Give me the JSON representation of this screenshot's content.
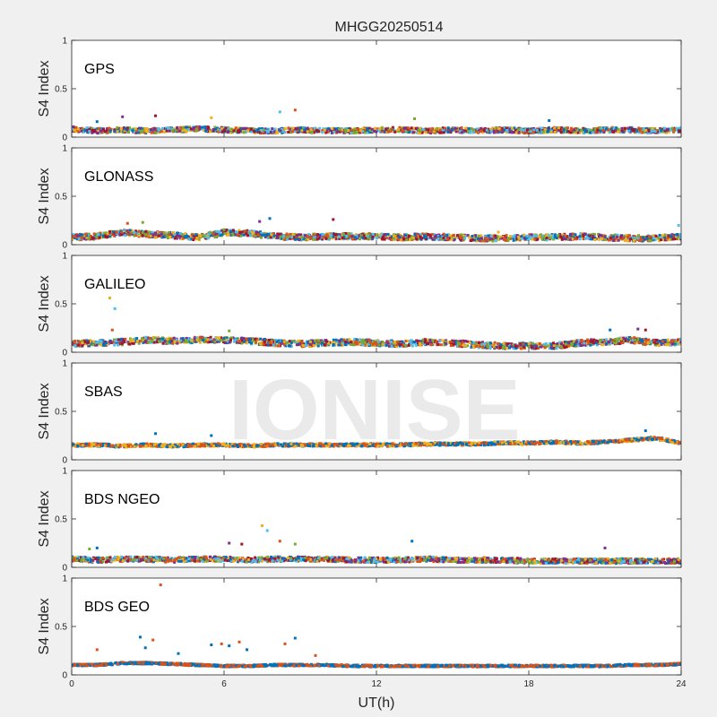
{
  "figure": {
    "title": "MHGG20250514",
    "xlabel": "UT(h)",
    "watermark": "IONISE",
    "background": "#f0f0f0",
    "axes_background": "#ffffff",
    "watermark_color": "#e6e6e6"
  },
  "chart_data": {
    "type": "scatter",
    "title": "MHGG20250514",
    "xlabel": "UT(h)",
    "ylabel": "S4 Index",
    "xlim": [
      0,
      24
    ],
    "ylim": [
      0,
      1
    ],
    "x_ticks": [
      "0",
      "6",
      "12",
      "18",
      "24"
    ],
    "y_ticks": [
      "0",
      "0.5",
      "1"
    ],
    "grid": false,
    "series_colors": [
      "#0072BD",
      "#D95319",
      "#EDB120",
      "#7E2F8E",
      "#77AC30",
      "#4DBEEE",
      "#A2142F"
    ],
    "panels": [
      {
        "label": "GPS",
        "baseline": [
          0.08,
          0.06,
          0.07,
          0.06,
          0.07,
          0.08,
          0.07,
          0.06,
          0.06,
          0.07,
          0.06,
          0.06,
          0.07,
          0.07,
          0.06,
          0.07,
          0.06,
          0.07,
          0.06,
          0.07,
          0.06,
          0.07,
          0.07,
          0.06,
          0.07
        ],
        "spread": 0.05,
        "outliers": [
          [
            1.0,
            0.16
          ],
          [
            2.0,
            0.21
          ],
          [
            3.3,
            0.22
          ],
          [
            5.5,
            0.2
          ],
          [
            8.2,
            0.26
          ],
          [
            8.8,
            0.28
          ],
          [
            13.5,
            0.19
          ],
          [
            18.8,
            0.17
          ]
        ]
      },
      {
        "label": "GLONASS",
        "baseline": [
          0.07,
          0.08,
          0.12,
          0.1,
          0.09,
          0.07,
          0.12,
          0.11,
          0.08,
          0.07,
          0.08,
          0.08,
          0.08,
          0.07,
          0.08,
          0.07,
          0.06,
          0.06,
          0.07,
          0.07,
          0.08,
          0.07,
          0.06,
          0.06,
          0.08
        ],
        "spread": 0.06,
        "outliers": [
          [
            2.2,
            0.22
          ],
          [
            2.8,
            0.23
          ],
          [
            7.8,
            0.27
          ],
          [
            7.4,
            0.24
          ],
          [
            10.3,
            0.26
          ],
          [
            16.8,
            0.13
          ],
          [
            23.9,
            0.2
          ]
        ]
      },
      {
        "label": "GALILEO",
        "baseline": [
          0.08,
          0.09,
          0.1,
          0.12,
          0.11,
          0.12,
          0.12,
          0.11,
          0.09,
          0.08,
          0.09,
          0.1,
          0.09,
          0.08,
          0.1,
          0.09,
          0.07,
          0.06,
          0.06,
          0.06,
          0.09,
          0.1,
          0.12,
          0.09,
          0.1
        ],
        "spread": 0.06,
        "outliers": [
          [
            1.5,
            0.56
          ],
          [
            1.7,
            0.45
          ],
          [
            1.6,
            0.23
          ],
          [
            6.2,
            0.22
          ],
          [
            21.2,
            0.23
          ],
          [
            22.3,
            0.24
          ],
          [
            22.6,
            0.23
          ]
        ]
      },
      {
        "label": "SBAS",
        "baseline": [
          0.15,
          0.15,
          0.14,
          0.15,
          0.14,
          0.15,
          0.15,
          0.14,
          0.15,
          0.15,
          0.15,
          0.15,
          0.15,
          0.15,
          0.16,
          0.16,
          0.16,
          0.17,
          0.17,
          0.18,
          0.17,
          0.18,
          0.2,
          0.22,
          0.17
        ],
        "spread": 0.03,
        "outliers": [
          [
            3.3,
            0.27
          ],
          [
            5.5,
            0.25
          ],
          [
            22.6,
            0.3
          ]
        ]
      },
      {
        "label": "BDS NGEO",
        "baseline": [
          0.08,
          0.07,
          0.08,
          0.08,
          0.07,
          0.08,
          0.08,
          0.07,
          0.08,
          0.08,
          0.08,
          0.07,
          0.07,
          0.07,
          0.08,
          0.07,
          0.07,
          0.07,
          0.06,
          0.06,
          0.06,
          0.06,
          0.06,
          0.06,
          0.06
        ],
        "spread": 0.05,
        "outliers": [
          [
            0.7,
            0.19
          ],
          [
            1.0,
            0.2
          ],
          [
            6.2,
            0.25
          ],
          [
            6.7,
            0.24
          ],
          [
            7.5,
            0.43
          ],
          [
            7.7,
            0.38
          ],
          [
            8.2,
            0.27
          ],
          [
            8.8,
            0.24
          ],
          [
            13.4,
            0.27
          ],
          [
            21.0,
            0.2
          ]
        ]
      },
      {
        "label": "BDS GEO",
        "baseline": [
          0.1,
          0.1,
          0.12,
          0.12,
          0.11,
          0.1,
          0.09,
          0.09,
          0.1,
          0.1,
          0.1,
          0.09,
          0.09,
          0.09,
          0.09,
          0.09,
          0.09,
          0.09,
          0.09,
          0.09,
          0.09,
          0.09,
          0.1,
          0.1,
          0.11
        ],
        "spread": 0.02,
        "outliers": [
          [
            3.5,
            0.93
          ],
          [
            2.7,
            0.39
          ],
          [
            3.2,
            0.36
          ],
          [
            2.9,
            0.28
          ],
          [
            1.0,
            0.26
          ],
          [
            5.5,
            0.31
          ],
          [
            5.9,
            0.32
          ],
          [
            6.2,
            0.3
          ],
          [
            6.6,
            0.34
          ],
          [
            6.9,
            0.26
          ],
          [
            8.4,
            0.32
          ],
          [
            8.8,
            0.38
          ],
          [
            9.6,
            0.2
          ],
          [
            4.2,
            0.22
          ]
        ]
      }
    ]
  }
}
